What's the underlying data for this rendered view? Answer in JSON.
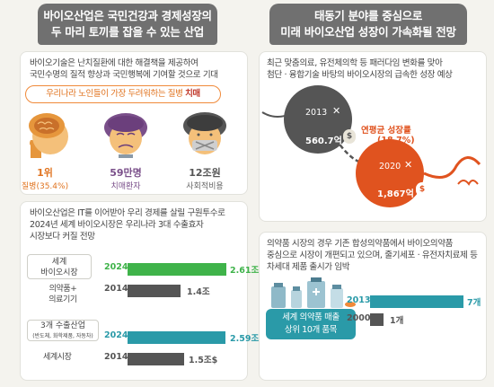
{
  "left_header": {
    "line1": "바이오산업은 국민건강과 경제성장의",
    "line2": "두 마리 토끼를 잡을 수 있는 산업"
  },
  "right_header": {
    "line1": "태동기 분야를 중심으로",
    "line2": "미래 바이오산업 성장이 가속화될 전망"
  },
  "panel1": {
    "line1": "바이오기술은 난치질환에 대한 해결책을 제공하여",
    "line2": "국민수명의 질적 향상과 국민행복에 기여할 것으로 기대",
    "pill_prefix": "우리나라 노인들이 가장 두려워하는 질병 ",
    "pill_emph": "치매",
    "stats": [
      {
        "value": "1위",
        "label": "질병(35.4%)"
      },
      {
        "value": "59만명",
        "label": "치매환자"
      },
      {
        "value": "12조원",
        "label": "사회적비용"
      }
    ]
  },
  "panel2": {
    "line1": "바이오산업은 IT를 이어받아 우리 경제를 살릴 구원투수로",
    "line2": "2024년 세계 바이오시장은 우리나라 3대 수출효자",
    "line3": "시장보다 커질 전망",
    "group1": {
      "label_a": "세계",
      "label_b": "바이오시장",
      "label_c": "의약품+",
      "label_d": "의료기기",
      "year_a": "2024",
      "value_a": "2.61조",
      "year_b": "2014",
      "value_b": "1.4조"
    },
    "group2": {
      "label_a": "3개 수출산업",
      "label_b": "(반도체, 화학제품, 자동차)",
      "label_c": "세계시장",
      "year_a": "2024",
      "value_a": "2.59조$",
      "year_b": "2014",
      "value_b": "1.5조$"
    }
  },
  "panel3": {
    "line1": "최근 맞춤의료, 유전체의학 등 패러다임 변화를 맞아",
    "line2": "첨단 · 융합기술 바탕의 바이오시장의 급속한 성장 예상",
    "year_a": "2013",
    "value_a": "560.7억",
    "year_b": "2020",
    "value_b": "1,867억",
    "rate_label": "연평균 성장률",
    "rate_value": "(18.7%)"
  },
  "panel4": {
    "line1": "의약품 시장의 경우 기존 합성의약품에서 바이오의약품",
    "line2": "중심으로 시장이 개편되고 있으며, 줄기세포 · 유전자치료제 등",
    "line3": "차세대 제품 출시가 임박",
    "badge1": "세계 의약품 매출",
    "badge2": "상위 10개 품목",
    "year_a": "2013",
    "value_a": "7개",
    "year_b": "2000",
    "value_b": "1개"
  },
  "colors": {
    "orange": "#f08a3a",
    "teal": "#2a9aa8",
    "green": "#3fb34a",
    "dark": "#555555",
    "red": "#e0531f"
  },
  "chart_data": [
    {
      "type": "bar",
      "categories": [
        "세계 바이오시장 2024",
        "의약품+의료기기 2014",
        "3개 수출산업 세계시장 2024",
        "3개 수출산업 세계시장 2014"
      ],
      "values": [
        2.61,
        1.4,
        2.59,
        1.5
      ]
    },
    {
      "type": "bar",
      "categories": [
        "2013",
        "2000"
      ],
      "values": [
        7,
        1
      ]
    }
  ]
}
